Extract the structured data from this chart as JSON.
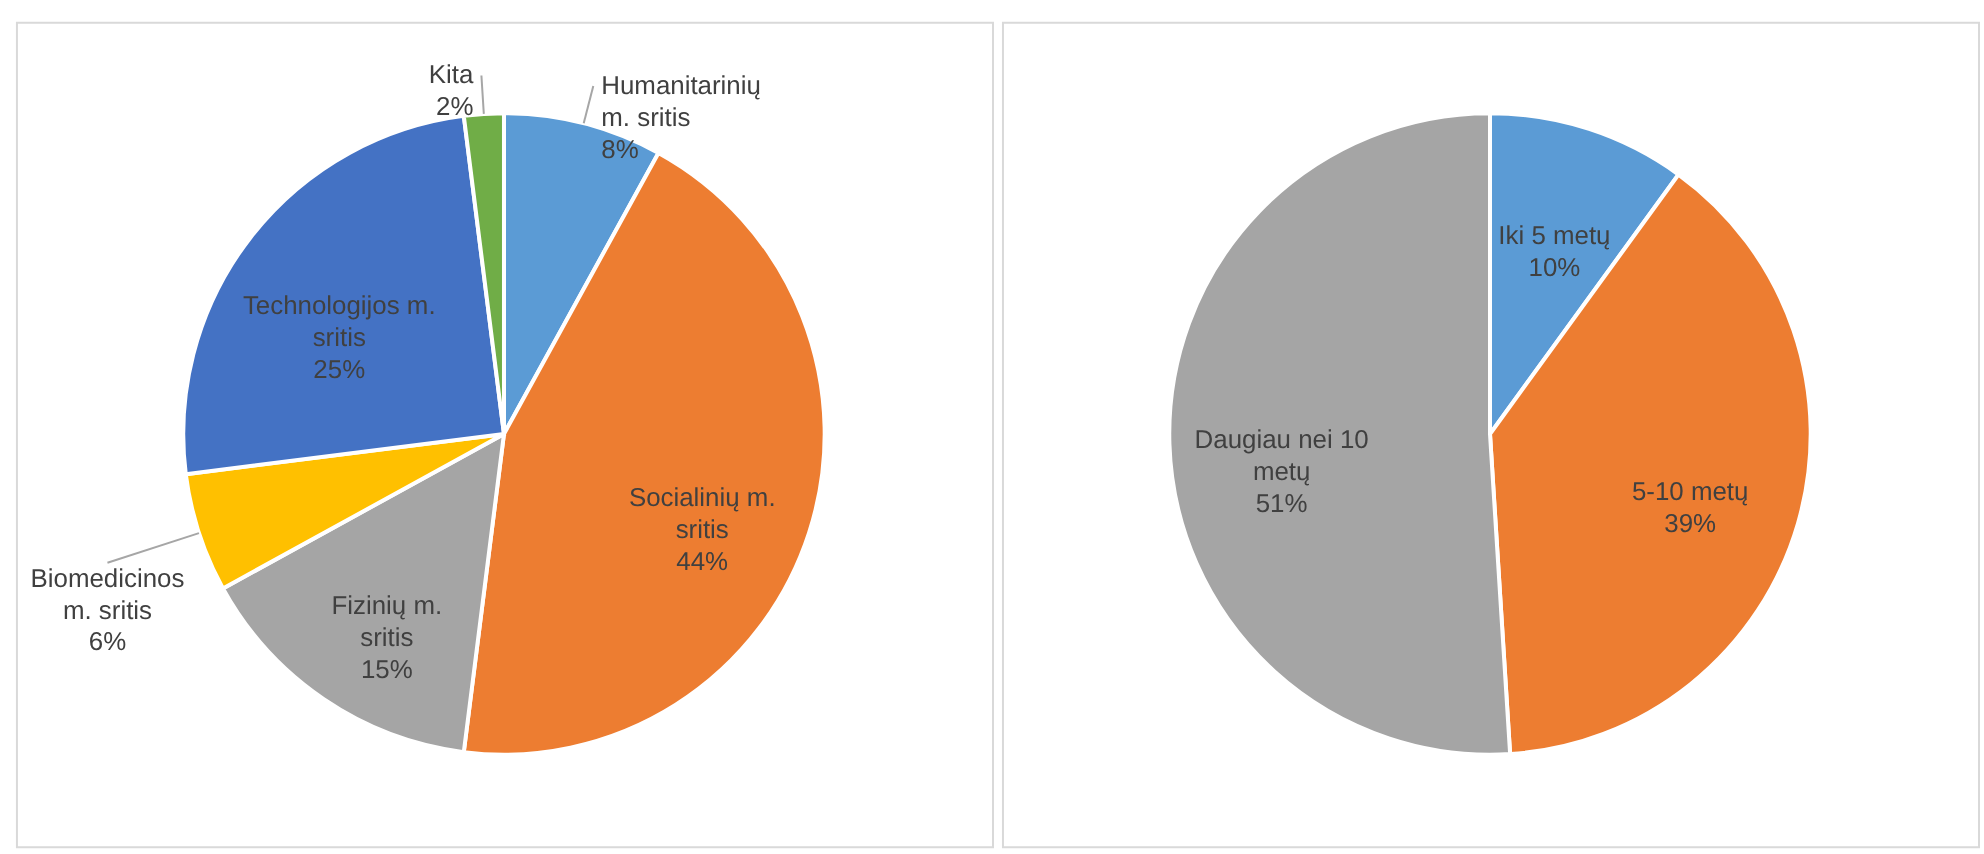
{
  "chart_data": [
    {
      "type": "pie",
      "categories": [
        "Humanitarinių m. sritis",
        "Socialinių m. sritis",
        "Fizinių m. sritis",
        "Biomedicinos m. sritis",
        "Technologijos m. sritis",
        "Kita"
      ],
      "values": [
        8,
        44,
        15,
        6,
        25,
        2
      ],
      "value_labels": [
        "8%",
        "44%",
        "15%",
        "6%",
        "25%",
        "2%"
      ],
      "colors": [
        "#5b9bd5",
        "#ed7d31",
        "#a5a5a5",
        "#ffc000",
        "#4472c4",
        "#70ad47"
      ]
    },
    {
      "type": "pie",
      "categories": [
        "Iki 5 metų",
        "5-10 metų",
        "Daugiau nei 10 metų"
      ],
      "values": [
        10,
        39,
        51
      ],
      "value_labels": [
        "10%",
        "39%",
        "51%"
      ],
      "colors": [
        "#5b9bd5",
        "#ed7d31",
        "#a5a5a5"
      ]
    }
  ]
}
